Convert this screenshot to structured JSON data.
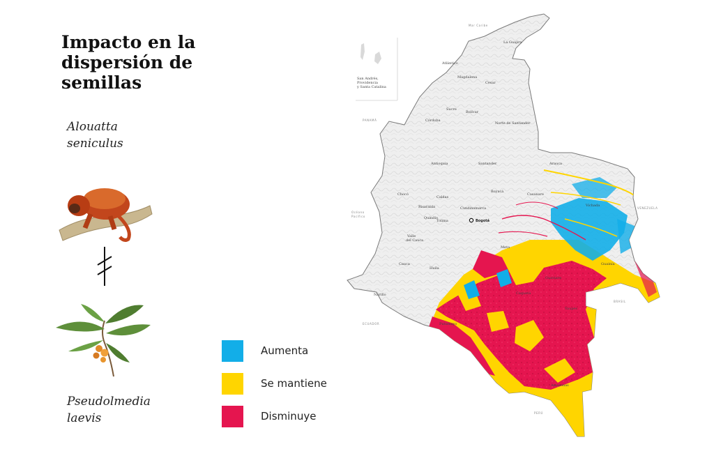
{
  "title": "Impacto en la\ndispersión de\nsemillas",
  "species": {
    "animal": "Alouatta\nseniculus",
    "plant": "Pseudolmedia\nlaevis"
  },
  "legend": [
    {
      "label": "Aumenta",
      "color": "#12aee8"
    },
    {
      "label": "Se mantiene",
      "color": "#ffd500"
    },
    {
      "label": "Disminuye",
      "color": "#e5154f"
    }
  ],
  "map": {
    "inset_label": "San Andrés,\nProvidencia\ny Santa Catalina",
    "capital": "Bogotá",
    "seas": [
      "Mar Caribe",
      "Océano\nPacífico"
    ],
    "countries": [
      "PANAMÁ",
      "VENEZUELA",
      "ECUADOR",
      "BRASIL",
      "PERÚ"
    ],
    "departments": [
      "La Guajira",
      "Atlántico",
      "Magdalena",
      "Cesar",
      "Sucre",
      "Bolívar",
      "Córdoba",
      "Norte de\nSantander",
      "Antioquia",
      "Santander",
      "Arauca",
      "Chocó",
      "Boyacá",
      "Casanare",
      "Caldas",
      "Risaralda",
      "Cundinamarca",
      "Vichada",
      "Quindío",
      "Tolima",
      "Valle\ndel Cauca",
      "Meta",
      "Guainía",
      "Cauca",
      "Huila",
      "Nariño",
      "Caquetá",
      "Vaupés",
      "Guaviare",
      "Putumayo",
      "Amazonas"
    ]
  }
}
